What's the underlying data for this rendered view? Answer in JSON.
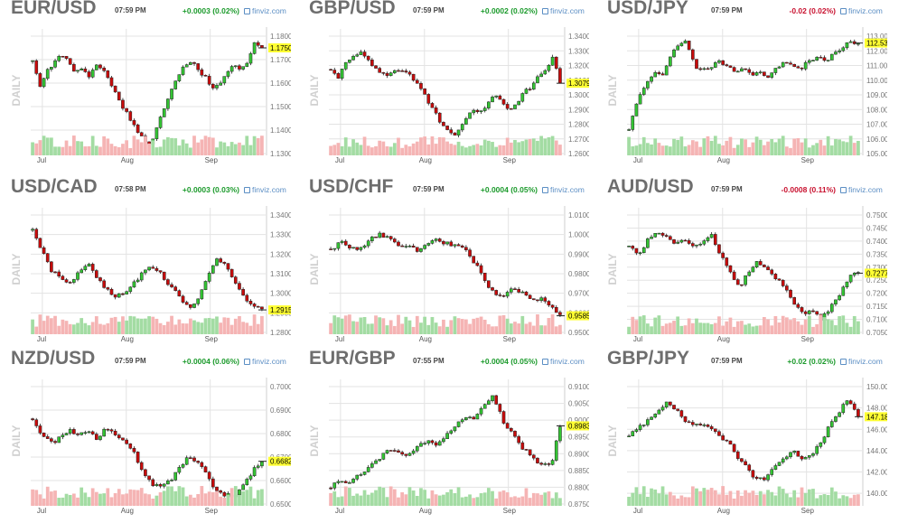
{
  "brand": {
    "text": "finviz.com",
    "icon": "finviz-logo-icon",
    "color": "#5b8ec4"
  },
  "colors": {
    "up": "#1b9a2b",
    "down": "#c8102e",
    "up_candle": "#33c433",
    "down_candle": "#c80b0b",
    "vol_up": "#a3dca3",
    "vol_down": "#f5b4b4",
    "last_price_bg": "#ffff33",
    "grid": "#e3e3e3"
  },
  "timeframe_label": "DAILY",
  "chart_data": [
    {
      "type": "candlestick",
      "symbol": "EUR/USD",
      "time": "07:59 PM",
      "change": "+0.0003 (0.02%)",
      "direction": "up",
      "y_ticks": [
        "1.1800",
        "1.1700",
        "1.1600",
        "1.1500",
        "1.1400",
        "1.1300"
      ],
      "ylim": [
        1.13,
        1.18
      ],
      "x_ticks": [
        "Jul",
        "Aug",
        "Sep"
      ],
      "last_price": "1.1750",
      "close_path": [
        1.17,
        1.158,
        1.165,
        1.168,
        1.173,
        1.17,
        1.165,
        1.167,
        1.162,
        1.168,
        1.166,
        1.162,
        1.155,
        1.15,
        1.145,
        1.14,
        1.136,
        1.133,
        1.142,
        1.15,
        1.158,
        1.164,
        1.168,
        1.17,
        1.165,
        1.162,
        1.158,
        1.16,
        1.164,
        1.168,
        1.165,
        1.17,
        1.178,
        1.175
      ]
    },
    {
      "type": "candlestick",
      "symbol": "GBP/USD",
      "time": "07:59 PM",
      "change": "+0.0002 (0.02%)",
      "direction": "up",
      "y_ticks": [
        "1.3400",
        "1.3300",
        "1.3200",
        "1.3100",
        "1.3000",
        "1.2900",
        "1.2800",
        "1.2700",
        "1.2600"
      ],
      "ylim": [
        1.26,
        1.34
      ],
      "x_ticks": [
        "Jul",
        "Aug",
        "Sep"
      ],
      "last_price": "1.3079",
      "close_path": [
        1.318,
        1.312,
        1.322,
        1.326,
        1.33,
        1.325,
        1.32,
        1.314,
        1.312,
        1.318,
        1.316,
        1.315,
        1.308,
        1.3,
        1.292,
        1.284,
        1.277,
        1.272,
        1.276,
        1.284,
        1.29,
        1.288,
        1.294,
        1.3,
        1.296,
        1.288,
        1.294,
        1.302,
        1.306,
        1.312,
        1.318,
        1.326,
        1.308
      ]
    },
    {
      "type": "candlestick",
      "symbol": "USD/JPY",
      "time": "07:59 PM",
      "change": "-0.02 (0.02%)",
      "direction": "down",
      "y_ticks": [
        "113.00",
        "112.00",
        "111.00",
        "110.00",
        "109.00",
        "108.00",
        "107.00",
        "106.00",
        "105.00"
      ],
      "ylim": [
        105.0,
        113.0
      ],
      "x_ticks": [
        "Jul",
        "Aug",
        "Sep"
      ],
      "last_price": "112.53",
      "close_path": [
        106.5,
        108.5,
        109.8,
        110.5,
        110.2,
        111.5,
        112.5,
        112.8,
        111.0,
        110.7,
        110.9,
        111.3,
        111.0,
        110.5,
        110.8,
        110.2,
        110.6,
        110.1,
        110.9,
        111.2,
        111.0,
        110.8,
        111.3,
        111.6,
        111.2,
        111.9,
        112.2,
        112.6,
        112.5
      ]
    },
    {
      "type": "candlestick",
      "symbol": "USD/CAD",
      "time": "07:58 PM",
      "change": "+0.0003 (0.03%)",
      "direction": "up",
      "y_ticks": [
        "1.3400",
        "1.3300",
        "1.3200",
        "1.3100",
        "1.3000",
        "1.2900",
        "1.2800"
      ],
      "ylim": [
        1.28,
        1.34
      ],
      "x_ticks": [
        "Jul",
        "Aug",
        "Sep"
      ],
      "last_price": "1.2915",
      "close_path": [
        1.332,
        1.322,
        1.312,
        1.308,
        1.305,
        1.31,
        1.316,
        1.308,
        1.302,
        1.298,
        1.3,
        1.305,
        1.31,
        1.314,
        1.31,
        1.304,
        1.298,
        1.292,
        1.297,
        1.308,
        1.318,
        1.314,
        1.306,
        1.298,
        1.293,
        1.292
      ]
    },
    {
      "type": "candlestick",
      "symbol": "USD/CHF",
      "time": "07:59 PM",
      "change": "+0.0004 (0.05%)",
      "direction": "up",
      "y_ticks": [
        "1.0100",
        "1.0000",
        "0.9900",
        "0.9800",
        "0.9700",
        "0.9600",
        "0.9500"
      ],
      "ylim": [
        0.95,
        1.01
      ],
      "x_ticks": [
        "Jul",
        "Aug",
        "Sep"
      ],
      "last_price": "0.9585",
      "close_path": [
        0.992,
        0.996,
        0.994,
        0.992,
        0.997,
        1.0,
        0.998,
        0.994,
        0.995,
        0.992,
        0.995,
        0.997,
        0.996,
        0.994,
        0.993,
        0.986,
        0.978,
        0.97,
        0.968,
        0.972,
        0.97,
        0.966,
        0.968,
        0.963,
        0.959
      ]
    },
    {
      "type": "candlestick",
      "symbol": "AUD/USD",
      "time": "07:59 PM",
      "change": "-0.0008 (0.11%)",
      "direction": "down",
      "y_ticks": [
        "0.7500",
        "0.7450",
        "0.7400",
        "0.7350",
        "0.7300",
        "0.7250",
        "0.7200",
        "0.7150",
        "0.7100",
        "0.7050"
      ],
      "ylim": [
        0.705,
        0.75
      ],
      "x_ticks": [
        "Jul",
        "Aug",
        "Sep"
      ],
      "last_price": "0.7277",
      "close_path": [
        0.738,
        0.735,
        0.74,
        0.744,
        0.742,
        0.739,
        0.741,
        0.738,
        0.74,
        0.742,
        0.735,
        0.728,
        0.722,
        0.728,
        0.732,
        0.73,
        0.726,
        0.722,
        0.716,
        0.712,
        0.714,
        0.71,
        0.715,
        0.72,
        0.726,
        0.728
      ]
    },
    {
      "type": "candlestick",
      "symbol": "NZD/USD",
      "time": "07:59 PM",
      "change": "+0.0004 (0.06%)",
      "direction": "up",
      "y_ticks": [
        "0.7000",
        "0.6900",
        "0.6800",
        "0.6700",
        "0.6600",
        "0.6500"
      ],
      "ylim": [
        0.65,
        0.7
      ],
      "x_ticks": [
        "Jul",
        "Aug",
        "Sep"
      ],
      "last_price": "0.6682",
      "close_path": [
        0.686,
        0.68,
        0.676,
        0.678,
        0.682,
        0.679,
        0.681,
        0.678,
        0.682,
        0.68,
        0.676,
        0.672,
        0.664,
        0.658,
        0.657,
        0.66,
        0.666,
        0.67,
        0.668,
        0.662,
        0.656,
        0.654,
        0.653,
        0.658,
        0.664,
        0.668
      ]
    },
    {
      "type": "candlestick",
      "symbol": "EUR/GBP",
      "time": "07:55 PM",
      "change": "+0.0004 (0.05%)",
      "direction": "up",
      "y_ticks": [
        "0.9100",
        "0.9050",
        "0.9000",
        "0.8950",
        "0.8900",
        "0.8850",
        "0.8800",
        "0.8750"
      ],
      "ylim": [
        0.875,
        0.91
      ],
      "x_ticks": [
        "Jul",
        "Aug",
        "Sep"
      ],
      "last_price": "0.8983",
      "close_path": [
        0.88,
        0.882,
        0.881,
        0.884,
        0.886,
        0.888,
        0.892,
        0.89,
        0.889,
        0.892,
        0.894,
        0.892,
        0.895,
        0.898,
        0.901,
        0.9,
        0.905,
        0.907,
        0.9,
        0.896,
        0.892,
        0.889,
        0.887,
        0.886,
        0.898
      ]
    },
    {
      "type": "candlestick",
      "symbol": "GBP/JPY",
      "time": "07:59 PM",
      "change": "+0.02 (0.02%)",
      "direction": "up",
      "y_ticks": [
        "150.00",
        "148.00",
        "146.00",
        "144.00",
        "142.00",
        "140.00"
      ],
      "ylim": [
        139.0,
        150.0
      ],
      "x_ticks": [
        "Jul",
        "Aug",
        "Sep"
      ],
      "last_price": "147.18",
      "close_path": [
        145.5,
        146.2,
        146.8,
        147.5,
        148.6,
        148.0,
        146.8,
        146.5,
        146.3,
        146.0,
        145.3,
        144.5,
        143.2,
        142.2,
        141.2,
        141.5,
        142.5,
        143.5,
        144.0,
        143.2,
        143.8,
        145.0,
        146.5,
        147.8,
        148.8,
        147.2
      ]
    }
  ]
}
